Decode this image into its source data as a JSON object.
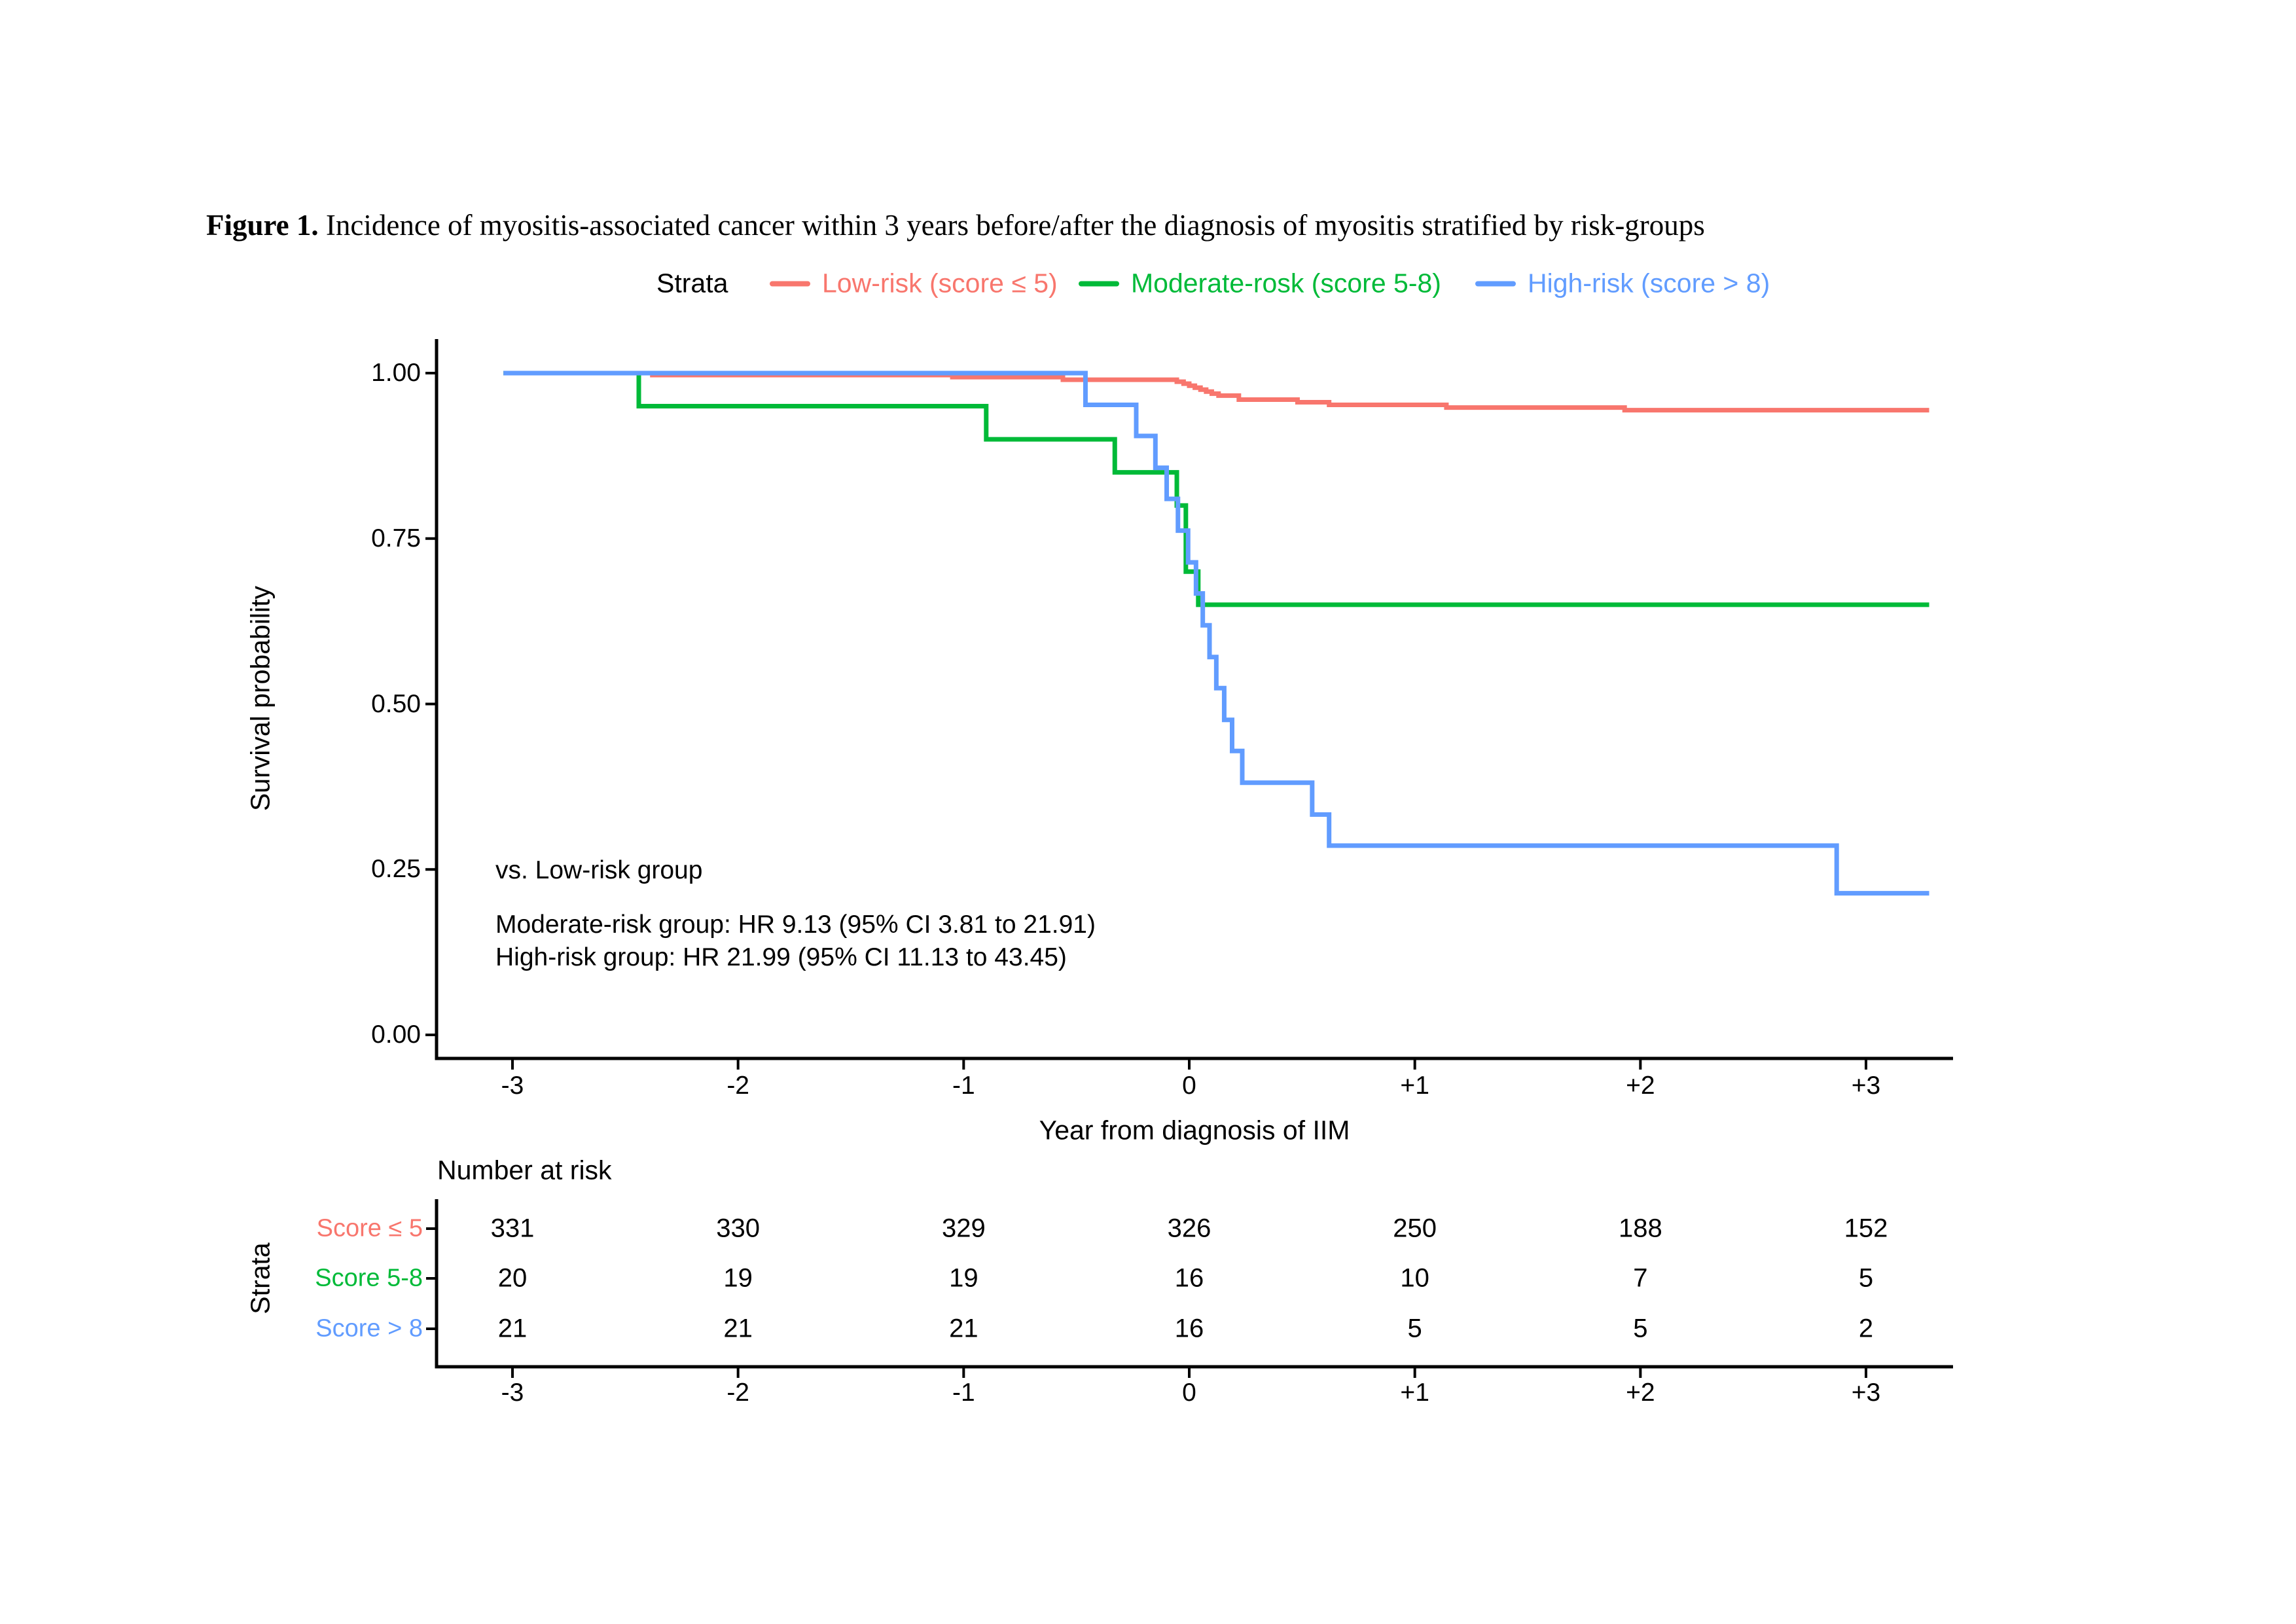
{
  "figure": {
    "caption_prefix": "Figure 1.",
    "caption_text": " Incidence of myositis-associated cancer within 3 years before/after the diagnosis of myositis stratified by risk-groups"
  },
  "legend": {
    "title": "Strata",
    "items": [
      {
        "label": "Low-risk (score ≤ 5)",
        "color": "#F8766D"
      },
      {
        "label": "Moderate-rosk (score 5-8)",
        "color": "#00BA38"
      },
      {
        "label": "High-risk (score > 8)",
        "color": "#619CFF"
      }
    ]
  },
  "plot": {
    "y_axis_label": "Survival probability",
    "x_axis_label": "Year from diagnosis of IIM",
    "y_tick_labels": [
      "1.00",
      "0.75",
      "0.50",
      "0.25",
      "0.00"
    ],
    "x_tick_labels": [
      "-3",
      "-2",
      "-1",
      "0",
      "+1",
      "+2",
      "+3"
    ]
  },
  "annotation": {
    "line1": "vs. Low-risk group",
    "line2": "Moderate-risk group: HR 9.13 (95% CI 3.81 to 21.91)",
    "line3": "High-risk group: HR 21.99 (95% CI 11.13 to 43.45)"
  },
  "risk_table": {
    "title": "Number at risk",
    "axis_label": "Strata",
    "x_tick_labels": [
      "-3",
      "-2",
      "-1",
      "0",
      "+1",
      "+2",
      "+3"
    ],
    "rows": [
      {
        "label": "Score ≤ 5",
        "color": "#F8766D",
        "values": [
          "331",
          "330",
          "329",
          "326",
          "250",
          "188",
          "152"
        ]
      },
      {
        "label": "Score 5-8",
        "color": "#00BA38",
        "values": [
          "20",
          "19",
          "19",
          "16",
          "10",
          "7",
          "5"
        ]
      },
      {
        "label": "Score > 8",
        "color": "#619CFF",
        "values": [
          "21",
          "21",
          "21",
          "16",
          "5",
          "5",
          "2"
        ]
      }
    ]
  },
  "chart_data": {
    "type": "line",
    "subtype": "kaplan-meier-step",
    "title": "",
    "xlabel": "Year from diagnosis of IIM",
    "ylabel": "Survival probability",
    "xlim": [
      -3.34,
      3.39
    ],
    "ylim": [
      0,
      1.04
    ],
    "x_ticks": [
      -3,
      -2,
      -1,
      0,
      1,
      2,
      3
    ],
    "y_ticks": [
      1.0,
      0.75,
      0.5,
      0.25,
      0.0
    ],
    "grid": false,
    "legend_position": "top",
    "x_start": -3.04,
    "x_end": 3.28,
    "series": [
      {
        "name": "Low-risk (score ≤ 5)",
        "color": "#F8766D",
        "steps": [
          [
            -3.04,
            1.0
          ],
          [
            -2.38,
            0.997
          ],
          [
            -1.05,
            0.994
          ],
          [
            -0.56,
            0.99
          ],
          [
            -0.055,
            0.987
          ],
          [
            -0.025,
            0.984
          ],
          [
            0.0,
            0.981
          ],
          [
            0.025,
            0.978
          ],
          [
            0.05,
            0.975
          ],
          [
            0.075,
            0.972
          ],
          [
            0.1,
            0.969
          ],
          [
            0.13,
            0.966
          ],
          [
            0.22,
            0.96
          ],
          [
            0.48,
            0.956
          ],
          [
            0.62,
            0.952
          ],
          [
            1.14,
            0.948
          ],
          [
            1.93,
            0.944
          ]
        ]
      },
      {
        "name": "Moderate-rosk (score 5-8)",
        "color": "#00BA38",
        "steps": [
          [
            -3.04,
            1.0
          ],
          [
            -2.44,
            0.95
          ],
          [
            -0.9,
            0.9
          ],
          [
            -0.33,
            0.85
          ],
          [
            -0.055,
            0.8
          ],
          [
            -0.015,
            0.7
          ],
          [
            0.04,
            0.65
          ]
        ]
      },
      {
        "name": "High-risk (score > 8)",
        "color": "#619CFF",
        "steps": [
          [
            -3.04,
            1.0
          ],
          [
            -0.46,
            0.952
          ],
          [
            -0.235,
            0.905
          ],
          [
            -0.15,
            0.857
          ],
          [
            -0.1,
            0.81
          ],
          [
            -0.05,
            0.762
          ],
          [
            -0.005,
            0.714
          ],
          [
            0.03,
            0.667
          ],
          [
            0.06,
            0.619
          ],
          [
            0.09,
            0.571
          ],
          [
            0.12,
            0.524
          ],
          [
            0.155,
            0.476
          ],
          [
            0.19,
            0.429
          ],
          [
            0.235,
            0.381
          ],
          [
            0.545,
            0.333
          ],
          [
            0.62,
            0.286
          ],
          [
            2.87,
            0.214
          ]
        ]
      }
    ]
  }
}
